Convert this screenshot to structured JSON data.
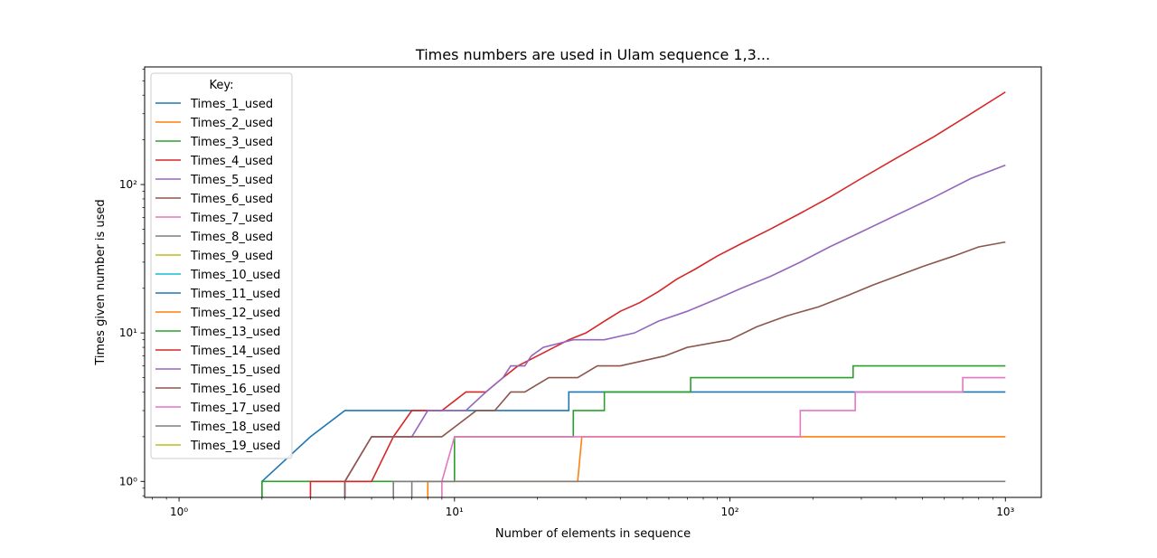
{
  "chart_data": {
    "type": "line",
    "title": "Times numbers are used in Ulam sequence 1,3...",
    "xlabel": "Number of elements in sequence",
    "ylabel": "Times given number is used",
    "xscale": "log",
    "yscale": "log",
    "xlim": [
      0.75,
      1350
    ],
    "ylim": [
      0.78,
      620
    ],
    "xticks": [
      {
        "value": 1,
        "label": "10⁰"
      },
      {
        "value": 10,
        "label": "10¹"
      },
      {
        "value": 100,
        "label": "10²"
      },
      {
        "value": 1000,
        "label": "10³"
      }
    ],
    "yticks": [
      {
        "value": 1,
        "label": "10⁰"
      },
      {
        "value": 10,
        "label": "10¹"
      },
      {
        "value": 100,
        "label": "10²"
      }
    ],
    "grid": false,
    "legend": {
      "title": "Key:",
      "placement": "upper-left"
    },
    "series": [
      {
        "name": "Times_1_used",
        "color": "#1f77b4",
        "x": [
          2,
          2,
          3,
          4,
          26,
          26,
          1000
        ],
        "y": [
          0.75,
          1,
          2,
          3,
          3,
          4,
          4
        ]
      },
      {
        "name": "Times_2_used",
        "color": "#ff7f0e",
        "x": [
          8,
          8,
          28,
          29,
          1000
        ],
        "y": [
          0.75,
          1,
          1,
          2,
          2
        ]
      },
      {
        "name": "Times_3_used",
        "color": "#2ca02c",
        "x": [
          2,
          2,
          10,
          10,
          27,
          27,
          35,
          35,
          72,
          72,
          280,
          280,
          1000
        ],
        "y": [
          0.75,
          1,
          1,
          2,
          2,
          3,
          3,
          4,
          4,
          5,
          5,
          6,
          6
        ]
      },
      {
        "name": "Times_4_used",
        "color": "#d62728",
        "x": [
          3,
          3,
          5,
          6,
          7,
          9,
          11,
          13,
          15,
          17,
          20,
          23,
          26,
          30,
          35,
          40,
          47,
          55,
          64,
          75,
          90,
          110,
          140,
          180,
          230,
          300,
          400,
          550,
          750,
          1000
        ],
        "y": [
          0.75,
          1,
          1,
          2,
          3,
          3,
          4,
          4,
          5,
          6,
          7,
          8,
          9,
          10,
          12,
          14,
          16,
          19,
          23,
          27,
          33,
          40,
          50,
          64,
          82,
          110,
          150,
          210,
          300,
          420
        ]
      },
      {
        "name": "Times_5_used",
        "color": "#9467bd",
        "x": [
          4,
          4,
          5,
          6,
          7,
          8,
          10,
          11,
          13,
          15,
          16,
          18,
          19,
          21,
          27,
          35,
          45,
          55,
          70,
          90,
          110,
          140,
          180,
          230,
          300,
          400,
          550,
          750,
          1000
        ],
        "y": [
          0.75,
          1,
          2,
          2,
          2,
          3,
          3,
          3,
          4,
          5,
          6,
          6,
          7,
          8,
          9,
          9,
          10,
          12,
          14,
          17,
          20,
          24,
          30,
          38,
          48,
          62,
          82,
          110,
          135
        ]
      },
      {
        "name": "Times_6_used",
        "color": "#8c564b",
        "x": [
          4,
          4,
          5,
          7,
          9,
          12,
          14,
          16,
          18,
          22,
          28,
          33,
          40,
          58,
          70,
          100,
          125,
          160,
          210,
          270,
          330,
          400,
          500,
          650,
          800,
          1000
        ],
        "y": [
          0.75,
          1,
          2,
          2,
          2,
          3,
          3,
          4,
          4,
          5,
          5,
          6,
          6,
          7,
          8,
          9,
          11,
          13,
          15,
          18,
          21,
          24,
          28,
          33,
          38,
          41
        ]
      },
      {
        "name": "Times_7_used",
        "color": "#e377c2",
        "x": [
          9,
          9,
          10,
          180,
          180,
          285,
          285,
          700,
          700,
          1000
        ],
        "y": [
          0.75,
          1,
          2,
          2,
          3,
          3,
          4,
          4,
          5,
          5
        ]
      },
      {
        "name": "Times_8_used",
        "color": "#7f7f7f",
        "x": [
          6,
          6,
          1000
        ],
        "y": [
          0.75,
          1,
          1
        ]
      },
      {
        "name": "Times_9_used",
        "color": "#bcbd22",
        "x": [],
        "y": []
      },
      {
        "name": "Times_10_used",
        "color": "#17becf",
        "x": [],
        "y": []
      },
      {
        "name": "Times_11_used",
        "color": "#1f77b4",
        "x": [],
        "y": []
      },
      {
        "name": "Times_12_used",
        "color": "#ff7f0e",
        "x": [],
        "y": []
      },
      {
        "name": "Times_13_used",
        "color": "#2ca02c",
        "x": [],
        "y": []
      },
      {
        "name": "Times_14_used",
        "color": "#d62728",
        "x": [],
        "y": []
      },
      {
        "name": "Times_15_used",
        "color": "#9467bd",
        "x": [],
        "y": []
      },
      {
        "name": "Times_16_used",
        "color": "#8c564b",
        "x": [],
        "y": []
      },
      {
        "name": "Times_17_used",
        "color": "#e377c2",
        "x": [],
        "y": []
      },
      {
        "name": "Times_18_used",
        "color": "#7f7f7f",
        "x": [
          7,
          7
        ],
        "y": [
          0.75,
          1
        ]
      },
      {
        "name": "Times_19_used",
        "color": "#bcbd22",
        "x": [],
        "y": []
      }
    ]
  }
}
